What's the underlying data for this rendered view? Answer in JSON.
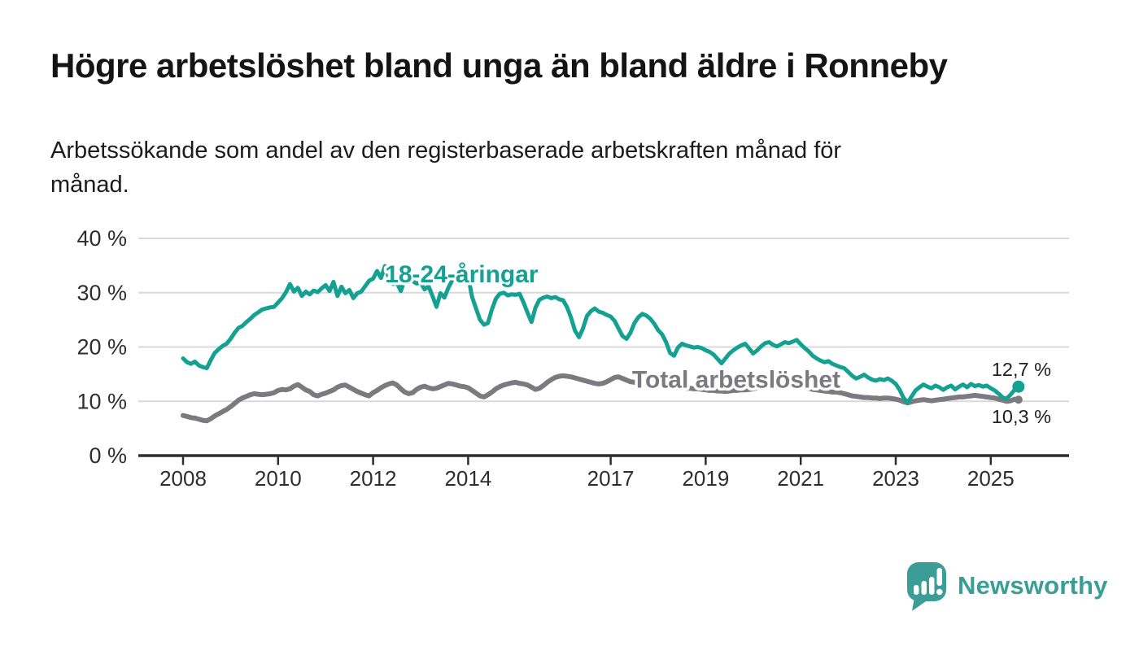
{
  "header": {
    "title": "Högre arbetslöshet bland unga än bland äldre i Ronneby",
    "subtitle_lines": [
      "Arbetssökande som andel av den registerbaserade arbetskraften månad för",
      "månad."
    ]
  },
  "branding": {
    "name": "Newsworthy",
    "color": "#3a9e96",
    "icon": "bar-chart-speech-bubble"
  },
  "chart_data": {
    "type": "line",
    "title": "",
    "xlabel": "",
    "ylabel": "",
    "grid": "horizontal-only",
    "ylim": [
      0,
      42
    ],
    "x_start": 2008.0,
    "x_step": 0.0833333,
    "axis_color": "#2e2e32",
    "grid_color": "#d9d9d9",
    "tick_label_color": "#2e2e32",
    "end_label_color": "#1f1f1f",
    "y_ticks": [
      {
        "value": 40,
        "label": "40 %"
      },
      {
        "value": 30,
        "label": "30 %"
      },
      {
        "value": 20,
        "label": "20 %"
      },
      {
        "value": 10,
        "label": "10 %"
      },
      {
        "value": 0,
        "label": "0 %"
      }
    ],
    "x_ticks": [
      {
        "value": 2008,
        "label": "2008"
      },
      {
        "value": 2010,
        "label": "2010"
      },
      {
        "value": 2012,
        "label": "2012"
      },
      {
        "value": 2014,
        "label": "2014"
      },
      {
        "value": 2017,
        "label": "2017"
      },
      {
        "value": 2019,
        "label": "2019"
      },
      {
        "value": 2021,
        "label": "2021"
      },
      {
        "value": 2023,
        "label": "2023"
      },
      {
        "value": 2025,
        "label": "2025"
      }
    ],
    "series": [
      {
        "name": "Total arbetslöshet",
        "color": "#7b7a7e",
        "width": 6,
        "end_dot_radius": 5,
        "end_label": "10,3 %",
        "end_label_side": "below",
        "label_anchor": {
          "x": 2017.45,
          "y": 14.0
        },
        "values": [
          7.4,
          7.2,
          7.0,
          6.9,
          6.7,
          6.5,
          6.4,
          6.8,
          7.3,
          7.7,
          8.1,
          8.5,
          9.0,
          9.6,
          10.2,
          10.6,
          10.9,
          11.2,
          11.4,
          11.3,
          11.2,
          11.3,
          11.4,
          11.6,
          12.0,
          12.2,
          12.1,
          12.3,
          12.8,
          13.1,
          12.6,
          12.1,
          11.8,
          11.2,
          11.0,
          11.3,
          11.5,
          11.8,
          12.1,
          12.6,
          12.9,
          13.0,
          12.6,
          12.2,
          11.8,
          11.5,
          11.2,
          11.0,
          11.6,
          12.0,
          12.5,
          12.9,
          13.2,
          13.4,
          13.0,
          12.3,
          11.7,
          11.4,
          11.6,
          12.2,
          12.6,
          12.8,
          12.5,
          12.3,
          12.4,
          12.7,
          13.0,
          13.3,
          13.2,
          13.0,
          12.8,
          12.7,
          12.5,
          12.0,
          11.5,
          11.0,
          10.8,
          11.2,
          11.7,
          12.3,
          12.7,
          13.0,
          13.2,
          13.4,
          13.5,
          13.3,
          13.2,
          13.0,
          12.6,
          12.2,
          12.4,
          12.9,
          13.5,
          14.0,
          14.4,
          14.6,
          14.7,
          14.6,
          14.5,
          14.3,
          14.1,
          13.9,
          13.7,
          13.5,
          13.3,
          13.2,
          13.3,
          13.6,
          14.0,
          14.4,
          14.5,
          14.2,
          13.9,
          13.6,
          13.5,
          13.4,
          13.3,
          13.2,
          13.1,
          13.0,
          13.0,
          12.9,
          12.8,
          12.7,
          12.6,
          12.5,
          12.5,
          12.4,
          12.4,
          12.3,
          12.3,
          12.2,
          12.1,
          12.0,
          12.0,
          11.9,
          11.9,
          11.8,
          11.9,
          12.0,
          12.0,
          12.1,
          12.1,
          12.2,
          12.3,
          12.5,
          12.8,
          13.1,
          13.3,
          13.4,
          13.4,
          13.3,
          13.2,
          13.1,
          13.0,
          12.9,
          12.8,
          12.6,
          12.4,
          12.2,
          12.1,
          12.0,
          11.9,
          11.8,
          11.7,
          11.7,
          11.6,
          11.4,
          11.2,
          11.0,
          10.9,
          10.8,
          10.7,
          10.7,
          10.6,
          10.6,
          10.5,
          10.6,
          10.6,
          10.5,
          10.4,
          10.2,
          9.9,
          9.7,
          9.9,
          10.1,
          10.2,
          10.3,
          10.2,
          10.1,
          10.2,
          10.3,
          10.4,
          10.5,
          10.6,
          10.7,
          10.8,
          10.8,
          10.9,
          11.0,
          11.1,
          11.0,
          10.9,
          10.8,
          10.7,
          10.6,
          10.4,
          10.2,
          10.0,
          10.1,
          10.4,
          10.3
        ]
      },
      {
        "name": "18-24-åringar",
        "color": "#14a192",
        "width": 5,
        "end_dot_radius": 7.5,
        "end_label": "12,7 %",
        "end_label_side": "above",
        "label_anchor": {
          "x": 2012.25,
          "y": 33.4
        },
        "values": [
          17.9,
          17.2,
          16.9,
          17.3,
          16.6,
          16.3,
          16.1,
          17.6,
          18.9,
          19.6,
          20.2,
          20.6,
          21.5,
          22.6,
          23.5,
          23.9,
          24.6,
          25.2,
          25.9,
          26.4,
          26.9,
          27.1,
          27.3,
          27.4,
          28.2,
          29.0,
          30.1,
          31.6,
          30.2,
          30.9,
          29.4,
          30.2,
          29.7,
          30.4,
          30.1,
          30.8,
          31.4,
          30.3,
          32.0,
          29.4,
          31.1,
          29.9,
          30.5,
          29.0,
          29.9,
          30.2,
          31.2,
          32.2,
          32.6,
          34.0,
          32.7,
          34.9,
          32.6,
          31.6,
          31.8,
          30.3,
          32.4,
          32.9,
          32.1,
          31.7,
          31.9,
          30.6,
          31.2,
          29.4,
          27.4,
          29.9,
          29.1,
          30.9,
          32.3,
          33.6,
          33.0,
          33.3,
          33.0,
          29.2,
          27.1,
          25.0,
          24.1,
          24.4,
          26.9,
          28.9,
          29.8,
          30.0,
          29.5,
          29.7,
          29.6,
          29.8,
          28.2,
          26.3,
          24.6,
          27.2,
          28.7,
          29.1,
          29.3,
          29.0,
          29.2,
          28.8,
          28.6,
          27.3,
          25.4,
          23.0,
          21.8,
          23.4,
          25.7,
          26.6,
          27.1,
          26.5,
          26.3,
          25.9,
          25.6,
          24.8,
          23.4,
          22.0,
          21.5,
          22.6,
          24.4,
          25.5,
          26.1,
          25.8,
          25.2,
          24.3,
          23.1,
          22.3,
          20.9,
          18.9,
          18.4,
          19.9,
          20.6,
          20.3,
          20.1,
          19.9,
          20.0,
          19.8,
          19.4,
          19.1,
          18.6,
          17.8,
          17.0,
          17.9,
          18.8,
          19.4,
          19.9,
          20.3,
          20.6,
          19.7,
          18.8,
          19.4,
          20.1,
          20.7,
          20.9,
          20.4,
          20.1,
          20.5,
          20.9,
          20.7,
          21.0,
          21.3,
          20.5,
          19.8,
          19.2,
          18.4,
          17.9,
          17.5,
          17.2,
          17.4,
          16.9,
          16.6,
          16.3,
          16.1,
          15.4,
          14.7,
          14.2,
          14.5,
          14.9,
          14.4,
          14.0,
          13.8,
          14.1,
          13.9,
          14.2,
          13.8,
          13.2,
          12.1,
          10.6,
          9.8,
          10.9,
          12.0,
          12.6,
          13.1,
          12.7,
          12.4,
          12.9,
          12.6,
          12.1,
          12.6,
          12.9,
          12.2,
          12.7,
          13.1,
          12.6,
          13.2,
          12.8,
          13.0,
          12.7,
          12.9,
          12.4,
          12.0,
          11.4,
          10.7,
          10.5,
          11.2,
          12.1,
          12.7
        ]
      }
    ]
  }
}
